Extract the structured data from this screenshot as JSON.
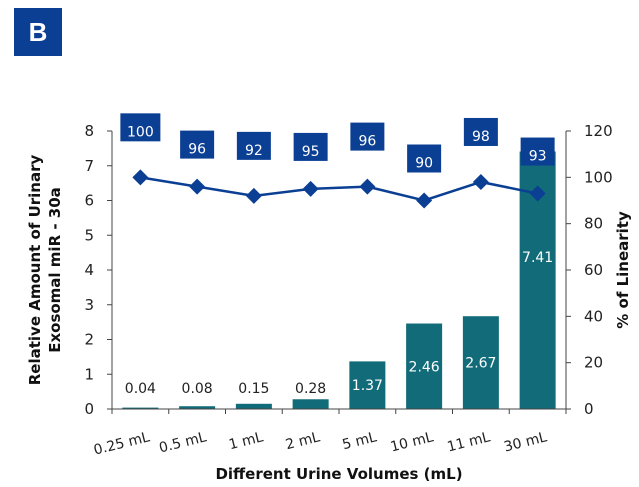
{
  "panel_label": "B",
  "colors": {
    "bar": "#116b78",
    "line": "#0b3f94",
    "label_box": "#0b3f94",
    "axis": "#444444"
  },
  "chart_data": {
    "type": "bar",
    "categories": [
      "0.25 mL",
      "0.5 mL",
      "1 mL",
      "2 mL",
      "5 mL",
      "10 mL",
      "11 mL",
      "30 mL"
    ],
    "xlabel": "Different Urine Volumes (mL)",
    "ylabel_left": "Relative Amount of Urinary Exosomal miR - 30a",
    "ylabel_right": "% of Linearity",
    "ylim_left": [
      0,
      8
    ],
    "ylim_right": [
      0,
      120
    ],
    "yticks_left": [
      "0",
      "1",
      "2",
      "3",
      "4",
      "5",
      "6",
      "7",
      "8"
    ],
    "yticks_right": [
      "0",
      "20",
      "40",
      "60",
      "80",
      "100",
      "120"
    ],
    "grid": false,
    "series": [
      {
        "type": "bar",
        "axis": "left",
        "values": [
          0.04,
          0.08,
          0.15,
          0.28,
          1.37,
          2.46,
          2.67,
          7.41
        ],
        "labels": [
          "0.04",
          "0.08",
          "0.15",
          "0.28",
          "1.37",
          "2.46",
          "2.67",
          "7.41"
        ]
      },
      {
        "type": "line",
        "axis": "right",
        "marker": "diamond",
        "values": [
          100,
          96,
          92,
          95,
          96,
          90,
          98,
          93
        ],
        "labels": [
          "100",
          "96",
          "92",
          "95",
          "96",
          "90",
          "98",
          "93"
        ]
      }
    ]
  }
}
